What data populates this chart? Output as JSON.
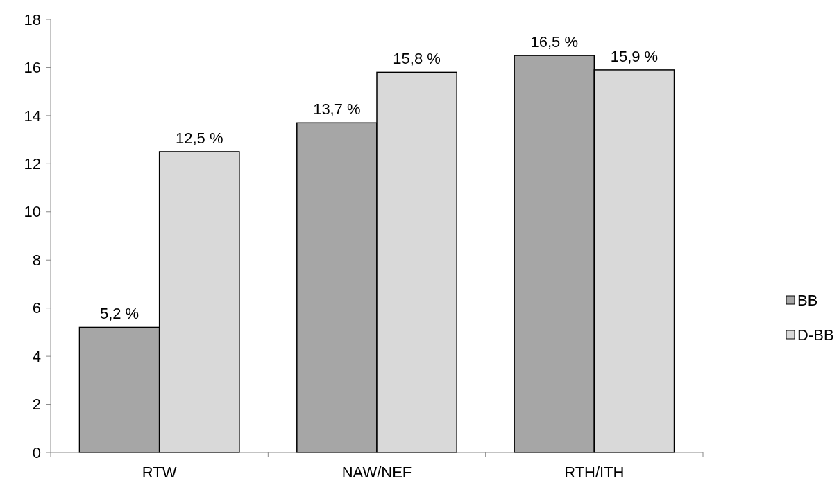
{
  "chart_data": {
    "type": "bar",
    "categories": [
      "RTW",
      "NAW/NEF",
      "RTH/ITH"
    ],
    "series": [
      {
        "name": "BB",
        "color": "#a6a6a6",
        "values": [
          5.2,
          13.7,
          16.5
        ],
        "value_labels": [
          "5,2 %",
          "13,7 %",
          "16,5 %"
        ]
      },
      {
        "name": "D-BB",
        "color": "#d9d9d9",
        "values": [
          12.5,
          15.8,
          15.9
        ],
        "value_labels": [
          "12,5 %",
          "15,8 %",
          "15,9 %"
        ]
      }
    ],
    "ylim": [
      0,
      18
    ],
    "yticks": [
      0,
      2,
      4,
      6,
      8,
      10,
      12,
      14,
      16,
      18
    ],
    "grid": false,
    "legend": "right"
  }
}
